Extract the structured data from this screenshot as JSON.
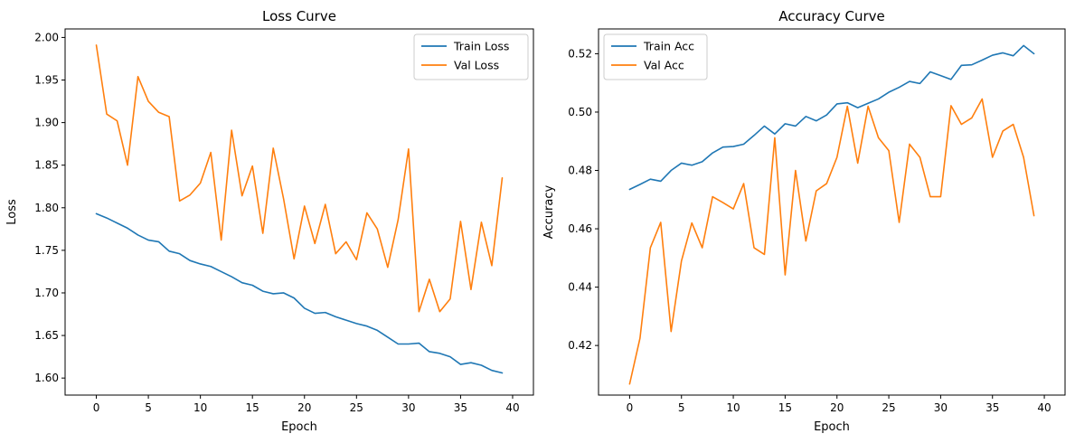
{
  "colors": {
    "train": "#1f77b4",
    "val": "#ff7f0e"
  },
  "chart_data": [
    {
      "type": "line",
      "title": "Loss Curve",
      "xlabel": "Epoch",
      "ylabel": "Loss",
      "xlim": [
        -3.0,
        42.0
      ],
      "ylim": [
        1.58,
        2.01
      ],
      "xticks": [
        0,
        5,
        10,
        15,
        20,
        25,
        30,
        35,
        40
      ],
      "xtick_labels": [
        "0",
        "5",
        "10",
        "15",
        "20",
        "25",
        "30",
        "35",
        "40"
      ],
      "yticks": [
        1.6,
        1.65,
        1.7,
        1.75,
        1.8,
        1.85,
        1.9,
        1.95,
        2.0
      ],
      "ytick_labels": [
        "1.60",
        "1.65",
        "1.70",
        "1.75",
        "1.80",
        "1.85",
        "1.90",
        "1.95",
        "2.00"
      ],
      "legend_position": "top-right",
      "grid": false,
      "x": [
        0,
        1,
        2,
        3,
        4,
        5,
        6,
        7,
        8,
        9,
        10,
        11,
        12,
        13,
        14,
        15,
        16,
        17,
        18,
        19,
        20,
        21,
        22,
        23,
        24,
        25,
        26,
        27,
        28,
        29,
        30,
        31,
        32,
        33,
        34,
        35,
        36,
        37,
        38,
        39
      ],
      "series": [
        {
          "name": "Train Loss",
          "color": "#1f77b4",
          "values": [
            1.793,
            1.788,
            1.782,
            1.776,
            1.768,
            1.762,
            1.76,
            1.749,
            1.746,
            1.738,
            1.734,
            1.731,
            1.725,
            1.719,
            1.712,
            1.709,
            1.702,
            1.699,
            1.7,
            1.694,
            1.682,
            1.676,
            1.677,
            1.672,
            1.668,
            1.664,
            1.661,
            1.656,
            1.648,
            1.64,
            1.64,
            1.641,
            1.631,
            1.629,
            1.625,
            1.616,
            1.618,
            1.615,
            1.609,
            1.606
          ]
        },
        {
          "name": "Val Loss",
          "color": "#ff7f0e",
          "values": [
            1.991,
            1.91,
            1.902,
            1.85,
            1.954,
            1.925,
            1.912,
            1.907,
            1.808,
            1.815,
            1.829,
            1.865,
            1.762,
            1.891,
            1.814,
            1.849,
            1.77,
            1.87,
            1.81,
            1.74,
            1.802,
            1.758,
            1.804,
            1.746,
            1.76,
            1.739,
            1.794,
            1.775,
            1.73,
            1.786,
            1.869,
            1.678,
            1.716,
            1.678,
            1.693,
            1.784,
            1.704,
            1.783,
            1.732,
            1.835
          ]
        }
      ]
    },
    {
      "type": "line",
      "title": "Accuracy Curve",
      "xlabel": "Epoch",
      "ylabel": "Accuracy",
      "xlim": [
        -3.0,
        42.0
      ],
      "ylim": [
        0.403,
        0.5285
      ],
      "xticks": [
        0,
        5,
        10,
        15,
        20,
        25,
        30,
        35,
        40
      ],
      "xtick_labels": [
        "0",
        "5",
        "10",
        "15",
        "20",
        "25",
        "30",
        "35",
        "40"
      ],
      "yticks": [
        0.42,
        0.44,
        0.46,
        0.48,
        0.5,
        0.52
      ],
      "ytick_labels": [
        "0.42",
        "0.44",
        "0.46",
        "0.48",
        "0.50",
        "0.52"
      ],
      "legend_position": "top-left",
      "grid": false,
      "x": [
        0,
        1,
        2,
        3,
        4,
        5,
        6,
        7,
        8,
        9,
        10,
        11,
        12,
        13,
        14,
        15,
        16,
        17,
        18,
        19,
        20,
        21,
        22,
        23,
        24,
        25,
        26,
        27,
        28,
        29,
        30,
        31,
        32,
        33,
        34,
        35,
        36,
        37,
        38,
        39
      ],
      "series": [
        {
          "name": "Train Acc",
          "color": "#1f77b4",
          "values": [
            0.4735,
            0.4752,
            0.477,
            0.4763,
            0.48,
            0.4825,
            0.4818,
            0.483,
            0.486,
            0.488,
            0.4882,
            0.489,
            0.492,
            0.4952,
            0.4925,
            0.496,
            0.4952,
            0.4985,
            0.497,
            0.499,
            0.5028,
            0.5032,
            0.5015,
            0.503,
            0.5045,
            0.5068,
            0.5085,
            0.5105,
            0.5098,
            0.5138,
            0.5125,
            0.5112,
            0.516,
            0.5162,
            0.5178,
            0.5195,
            0.5203,
            0.5193,
            0.5228,
            0.52
          ]
        },
        {
          "name": "Val Acc",
          "color": "#ff7f0e",
          "values": [
            0.4068,
            0.4225,
            0.4535,
            0.4622,
            0.4248,
            0.449,
            0.462,
            0.4535,
            0.471,
            0.469,
            0.4668,
            0.4755,
            0.4535,
            0.4512,
            0.4912,
            0.4442,
            0.48,
            0.4558,
            0.473,
            0.4755,
            0.4845,
            0.502,
            0.4825,
            0.502,
            0.4912,
            0.4868,
            0.4622,
            0.489,
            0.4845,
            0.471,
            0.471,
            0.5022,
            0.4958,
            0.498,
            0.5045,
            0.4845,
            0.4935,
            0.4958,
            0.4845,
            0.4645
          ]
        }
      ]
    }
  ]
}
